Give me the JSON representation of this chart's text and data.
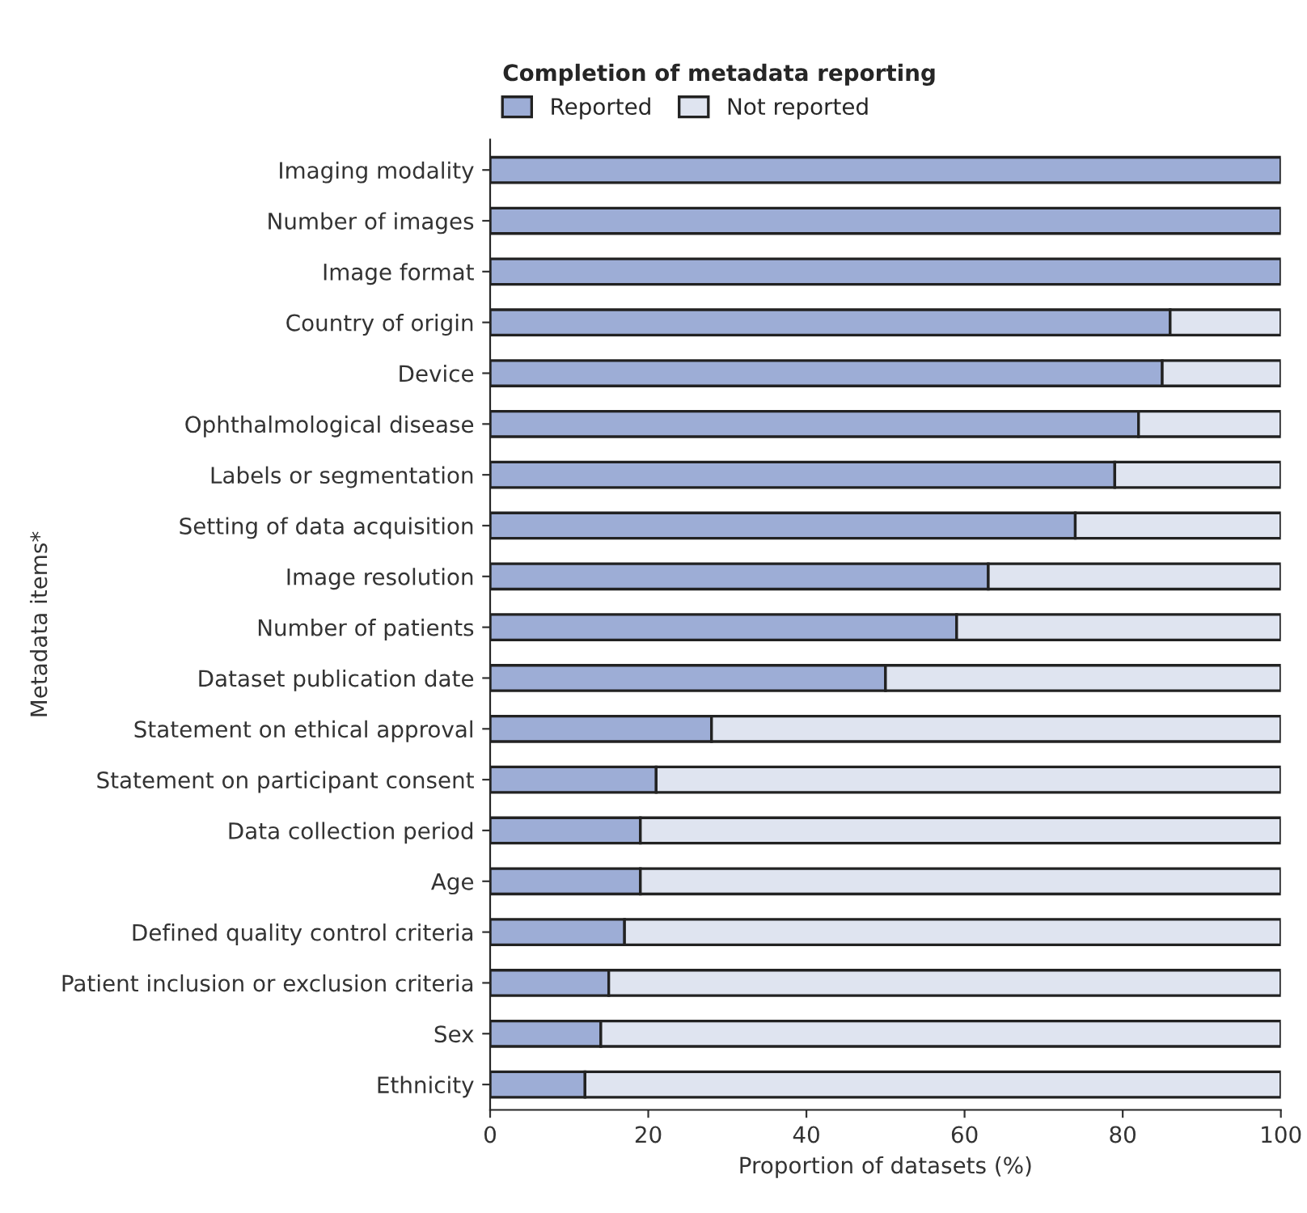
{
  "chart_data": {
    "type": "bar",
    "orientation": "horizontal",
    "stacked": true,
    "legend_title": "Completion of metadata reporting",
    "xlabel": "Proportion of datasets (%)",
    "ylabel": "Metadata items*",
    "categories": [
      "Imaging modality",
      "Number of images",
      "Image format",
      "Country of origin",
      "Device",
      "Ophthalmological disease",
      "Labels or segmentation",
      "Setting of data acquisition",
      "Image resolution",
      "Number of patients",
      "Dataset publication date",
      "Statement on ethical approval",
      "Statement on participant consent",
      "Data collection period",
      "Age",
      "Defined quality control criteria",
      "Patient inclusion or exclusion criteria",
      "Sex",
      "Ethnicity"
    ],
    "series": [
      {
        "name": "Reported",
        "color": "#9dadd6",
        "values": [
          100,
          100,
          100,
          86,
          85,
          82,
          79,
          74,
          63,
          59,
          50,
          28,
          21,
          19,
          19,
          17,
          15,
          14,
          12
        ]
      },
      {
        "name": "Not reported",
        "color": "#dfe4f0",
        "values": [
          null,
          null,
          null,
          14,
          15,
          18,
          21,
          26,
          37,
          41,
          50,
          72,
          79,
          81,
          81,
          83,
          85,
          86,
          88
        ]
      }
    ],
    "xlim": [
      0,
      100
    ],
    "xticks": [
      0,
      20,
      40,
      60,
      80,
      100
    ],
    "grid": false,
    "legend": "top left"
  }
}
